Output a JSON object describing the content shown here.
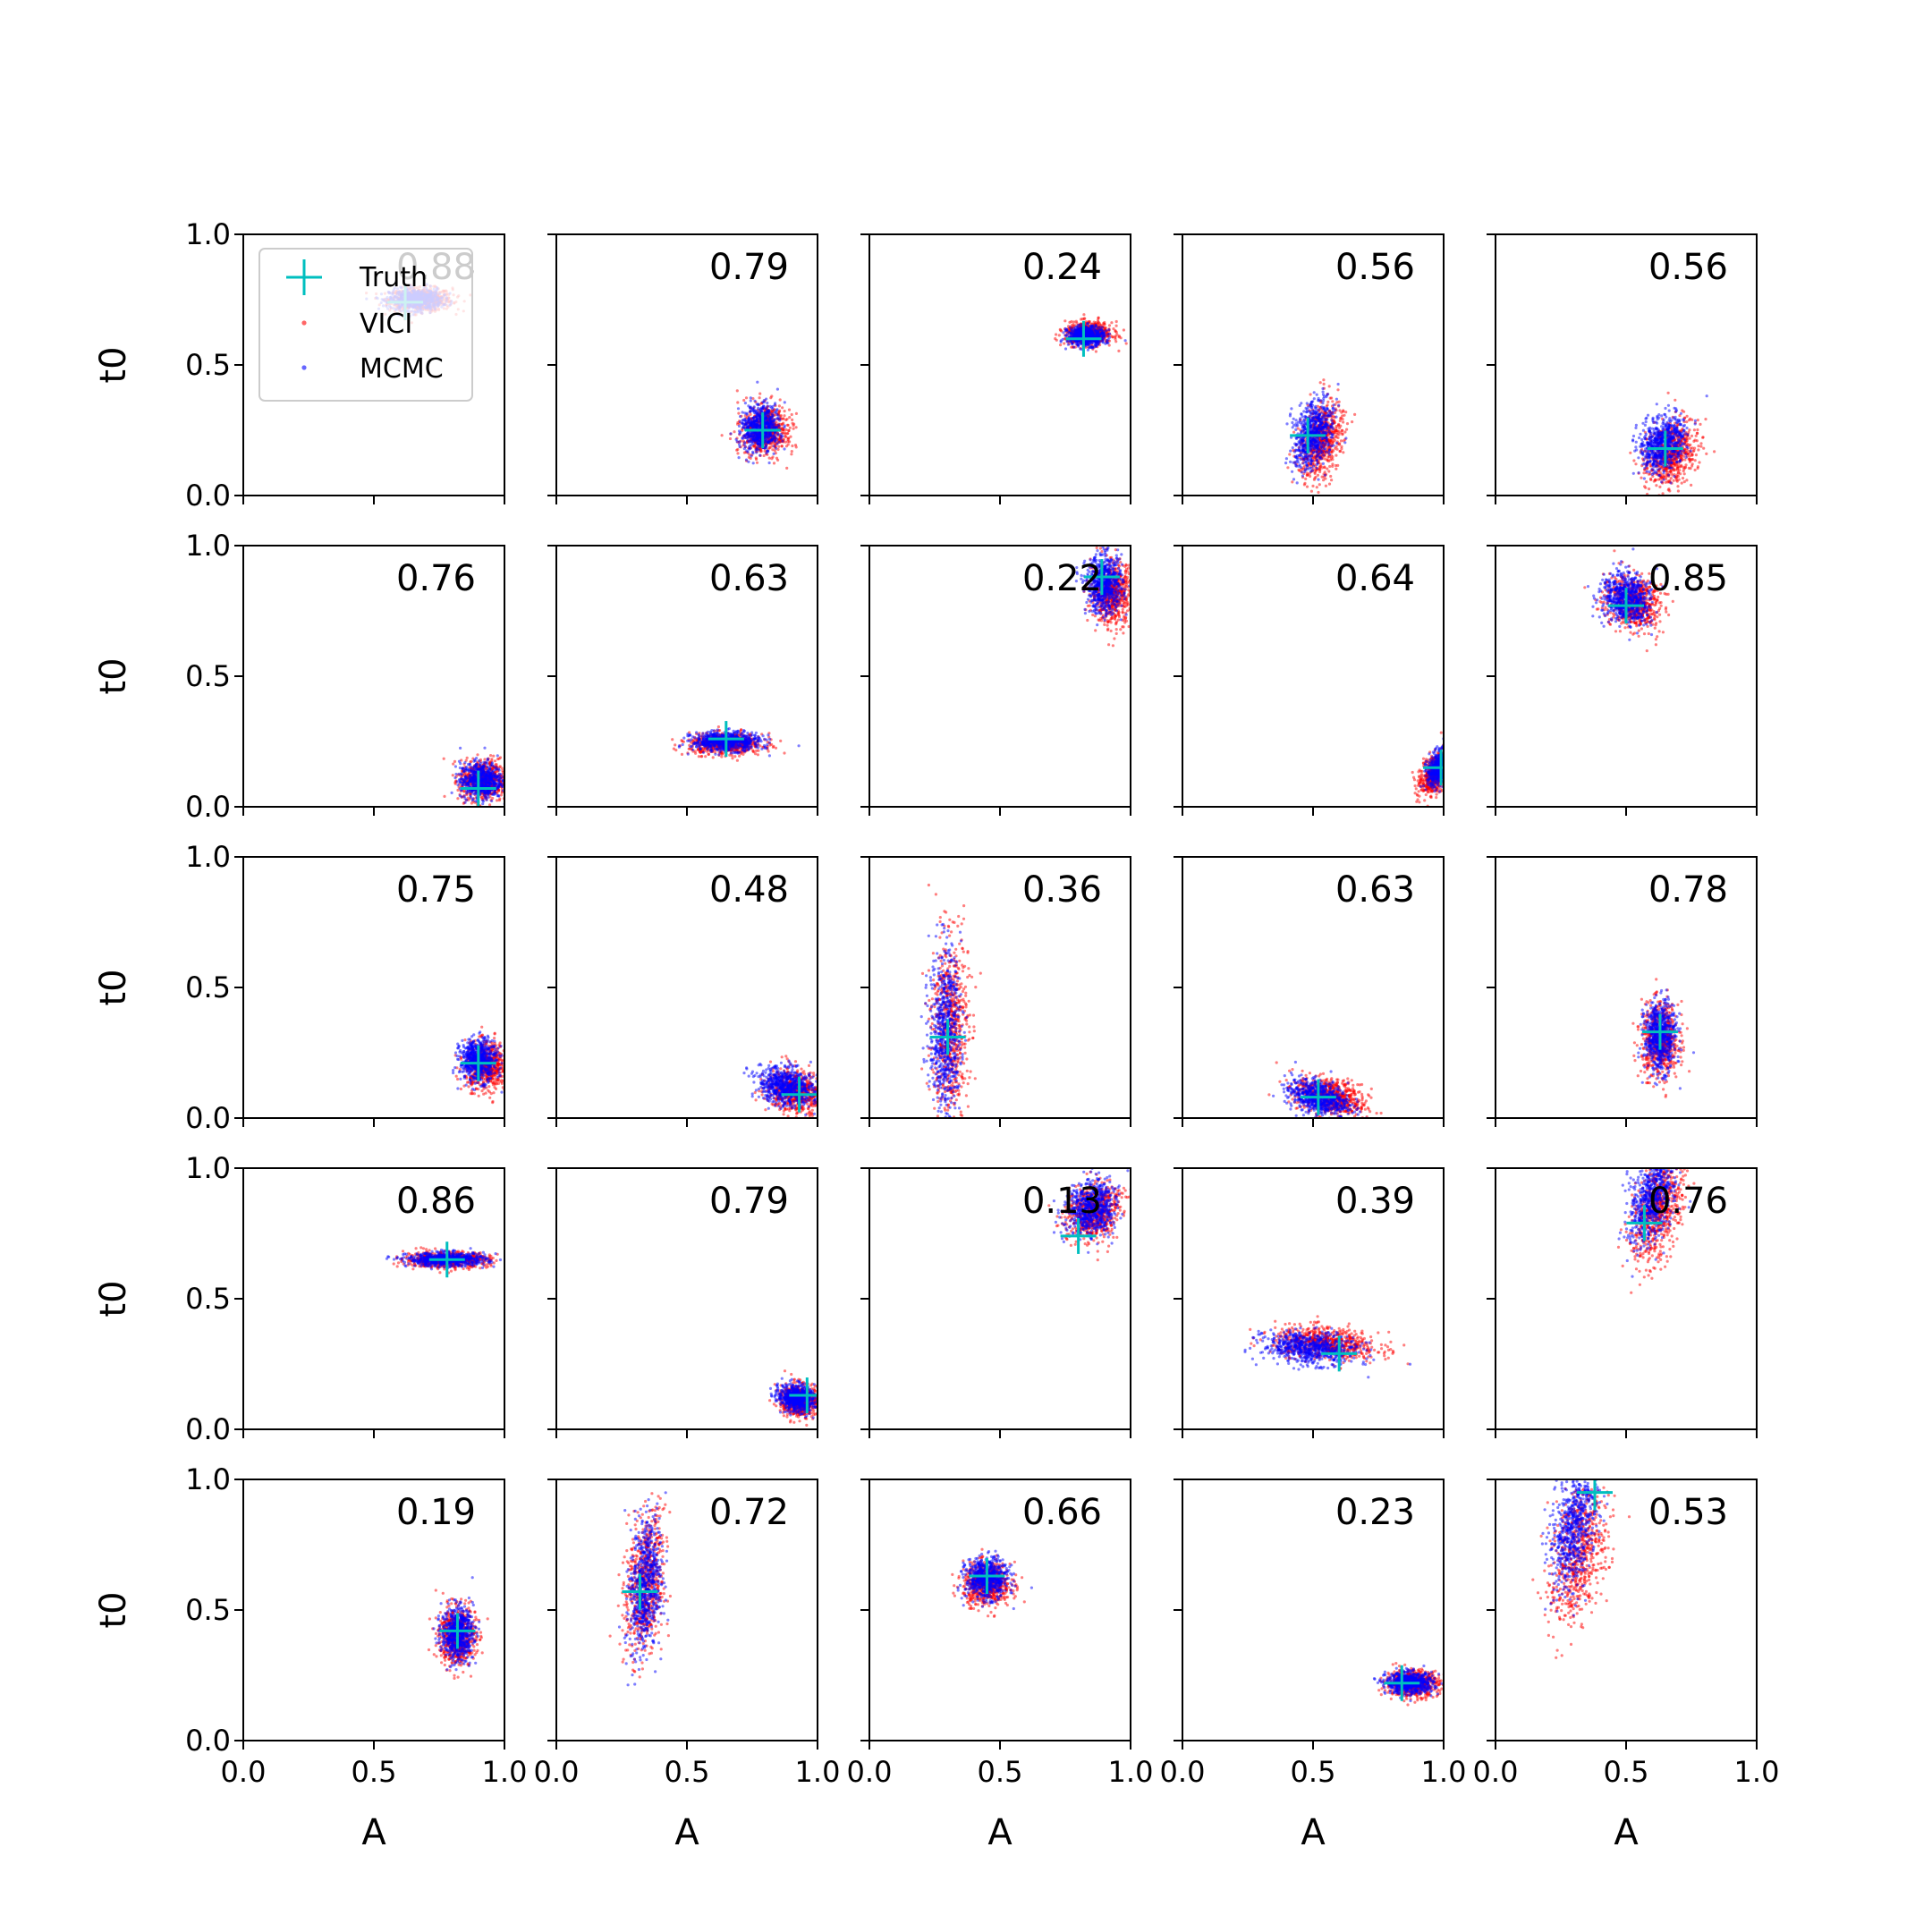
{
  "figure": {
    "xlabel": "A",
    "ylabel": "t0",
    "xticks": [
      "0.0",
      "0.5",
      "1.0"
    ],
    "yticks": [
      "0.0",
      "0.5",
      "1.0"
    ],
    "colors": {
      "vici": "#ff0000",
      "mcmc": "#0000ff",
      "truth": "#00bfbf",
      "axis": "#000000"
    },
    "legend": {
      "placement": "upper-left (first panel)",
      "items": [
        {
          "label": "Truth",
          "marker": "plus",
          "color": "#00bfbf"
        },
        {
          "label": "VICI",
          "marker": "dot",
          "color": "#ff0000"
        },
        {
          "label": "MCMC",
          "marker": "dot",
          "color": "#0000ff"
        }
      ]
    }
  },
  "chart_data": [
    {
      "type": "scatter",
      "row": 0,
      "col": 0,
      "score": "0.88",
      "truth": {
        "A": 0.62,
        "t0": 0.74
      },
      "vici": {
        "cx": 0.68,
        "cy": 0.75,
        "sx": 0.06,
        "sy": 0.022,
        "rot": 0
      },
      "mcmc": {
        "cx": 0.66,
        "cy": 0.75,
        "sx": 0.05,
        "sy": 0.02,
        "rot": 0
      },
      "xlim": [
        0,
        1
      ],
      "ylim": [
        0,
        1
      ]
    },
    {
      "type": "scatter",
      "row": 0,
      "col": 1,
      "score": "0.79",
      "truth": {
        "A": 0.79,
        "t0": 0.25
      },
      "vici": {
        "cx": 0.8,
        "cy": 0.25,
        "sx": 0.045,
        "sy": 0.05,
        "rot": -20
      },
      "mcmc": {
        "cx": 0.78,
        "cy": 0.26,
        "sx": 0.035,
        "sy": 0.045,
        "rot": -20
      },
      "xlim": [
        0,
        1
      ],
      "ylim": [
        0,
        1
      ]
    },
    {
      "type": "scatter",
      "row": 0,
      "col": 2,
      "score": "0.24",
      "truth": {
        "A": 0.82,
        "t0": 0.6
      },
      "vici": {
        "cx": 0.84,
        "cy": 0.62,
        "sx": 0.045,
        "sy": 0.022,
        "rot": 0
      },
      "mcmc": {
        "cx": 0.83,
        "cy": 0.61,
        "sx": 0.035,
        "sy": 0.018,
        "rot": 0
      },
      "xlim": [
        0,
        1
      ],
      "ylim": [
        0,
        1
      ]
    },
    {
      "type": "scatter",
      "row": 0,
      "col": 3,
      "score": "0.56",
      "truth": {
        "A": 0.48,
        "t0": 0.23
      },
      "vici": {
        "cx": 0.53,
        "cy": 0.21,
        "sx": 0.04,
        "sy": 0.075,
        "rot": -15
      },
      "mcmc": {
        "cx": 0.5,
        "cy": 0.23,
        "sx": 0.035,
        "sy": 0.065,
        "rot": -15
      },
      "xlim": [
        0,
        1
      ],
      "ylim": [
        0,
        1
      ]
    },
    {
      "type": "scatter",
      "row": 0,
      "col": 4,
      "score": "0.56",
      "truth": {
        "A": 0.65,
        "t0": 0.18
      },
      "vici": {
        "cx": 0.67,
        "cy": 0.16,
        "sx": 0.045,
        "sy": 0.065,
        "rot": -25
      },
      "mcmc": {
        "cx": 0.64,
        "cy": 0.2,
        "sx": 0.04,
        "sy": 0.055,
        "rot": -25
      },
      "xlim": [
        0,
        1
      ],
      "ylim": [
        0,
        1
      ]
    },
    {
      "type": "scatter",
      "row": 1,
      "col": 0,
      "score": "0.76",
      "truth": {
        "A": 0.9,
        "t0": 0.07
      },
      "vici": {
        "cx": 0.92,
        "cy": 0.1,
        "sx": 0.045,
        "sy": 0.04,
        "rot": 0
      },
      "mcmc": {
        "cx": 0.91,
        "cy": 0.1,
        "sx": 0.04,
        "sy": 0.035,
        "rot": 0
      },
      "xlim": [
        0,
        1
      ],
      "ylim": [
        0,
        1
      ]
    },
    {
      "type": "scatter",
      "row": 1,
      "col": 1,
      "score": "0.63",
      "truth": {
        "A": 0.65,
        "t0": 0.26
      },
      "vici": {
        "cx": 0.65,
        "cy": 0.24,
        "sx": 0.07,
        "sy": 0.02,
        "rot": 0
      },
      "mcmc": {
        "cx": 0.65,
        "cy": 0.25,
        "sx": 0.065,
        "sy": 0.018,
        "rot": 0
      },
      "xlim": [
        0,
        1
      ],
      "ylim": [
        0,
        1
      ]
    },
    {
      "type": "scatter",
      "row": 1,
      "col": 2,
      "score": "0.22",
      "truth": {
        "A": 0.89,
        "t0": 0.88
      },
      "vici": {
        "cx": 0.93,
        "cy": 0.82,
        "sx": 0.04,
        "sy": 0.06,
        "rot": 0
      },
      "mcmc": {
        "cx": 0.9,
        "cy": 0.85,
        "sx": 0.035,
        "sy": 0.055,
        "rot": 0
      },
      "xlim": [
        0,
        1
      ],
      "ylim": [
        0,
        1
      ]
    },
    {
      "type": "scatter",
      "row": 1,
      "col": 3,
      "score": "0.64",
      "truth": {
        "A": 0.99,
        "t0": 0.15
      },
      "vici": {
        "cx": 0.97,
        "cy": 0.13,
        "sx": 0.025,
        "sy": 0.045,
        "rot": -30
      },
      "mcmc": {
        "cx": 0.99,
        "cy": 0.16,
        "sx": 0.02,
        "sy": 0.04,
        "rot": -30
      },
      "xlim": [
        0,
        1
      ],
      "ylim": [
        0,
        1
      ]
    },
    {
      "type": "scatter",
      "row": 1,
      "col": 4,
      "score": "0.85",
      "truth": {
        "A": 0.5,
        "t0": 0.77
      },
      "vici": {
        "cx": 0.53,
        "cy": 0.78,
        "sx": 0.055,
        "sy": 0.05,
        "rot": -40
      },
      "mcmc": {
        "cx": 0.5,
        "cy": 0.8,
        "sx": 0.05,
        "sy": 0.045,
        "rot": -40
      },
      "xlim": [
        0,
        1
      ],
      "ylim": [
        0,
        1
      ]
    },
    {
      "type": "scatter",
      "row": 2,
      "col": 0,
      "score": "0.75",
      "truth": {
        "A": 0.9,
        "t0": 0.21
      },
      "vici": {
        "cx": 0.93,
        "cy": 0.2,
        "sx": 0.04,
        "sy": 0.045,
        "rot": 0
      },
      "mcmc": {
        "cx": 0.9,
        "cy": 0.22,
        "sx": 0.035,
        "sy": 0.04,
        "rot": 0
      },
      "xlim": [
        0,
        1
      ],
      "ylim": [
        0,
        1
      ]
    },
    {
      "type": "scatter",
      "row": 2,
      "col": 1,
      "score": "0.48",
      "truth": {
        "A": 0.93,
        "t0": 0.09
      },
      "vici": {
        "cx": 0.92,
        "cy": 0.1,
        "sx": 0.06,
        "sy": 0.04,
        "rot": -15
      },
      "mcmc": {
        "cx": 0.88,
        "cy": 0.12,
        "sx": 0.055,
        "sy": 0.035,
        "rot": -15
      },
      "xlim": [
        0,
        1
      ],
      "ylim": [
        0,
        1
      ]
    },
    {
      "type": "scatter",
      "row": 2,
      "col": 2,
      "score": "0.36",
      "truth": {
        "A": 0.3,
        "t0": 0.31
      },
      "vici": {
        "cx": 0.31,
        "cy": 0.35,
        "sx": 0.035,
        "sy": 0.17,
        "rot": 0
      },
      "mcmc": {
        "cx": 0.29,
        "cy": 0.33,
        "sx": 0.03,
        "sy": 0.16,
        "rot": 0
      },
      "xlim": [
        0,
        1
      ],
      "ylim": [
        0,
        1
      ]
    },
    {
      "type": "scatter",
      "row": 2,
      "col": 3,
      "score": "0.63",
      "truth": {
        "A": 0.52,
        "t0": 0.08
      },
      "vici": {
        "cx": 0.57,
        "cy": 0.08,
        "sx": 0.07,
        "sy": 0.035,
        "rot": -15
      },
      "mcmc": {
        "cx": 0.52,
        "cy": 0.08,
        "sx": 0.06,
        "sy": 0.03,
        "rot": -15
      },
      "xlim": [
        0,
        1
      ],
      "ylim": [
        0,
        1
      ]
    },
    {
      "type": "scatter",
      "row": 2,
      "col": 4,
      "score": "0.78",
      "truth": {
        "A": 0.63,
        "t0": 0.33
      },
      "vici": {
        "cx": 0.63,
        "cy": 0.3,
        "sx": 0.035,
        "sy": 0.07,
        "rot": 0
      },
      "mcmc": {
        "cx": 0.63,
        "cy": 0.31,
        "sx": 0.03,
        "sy": 0.065,
        "rot": 0
      },
      "xlim": [
        0,
        1
      ],
      "ylim": [
        0,
        1
      ]
    },
    {
      "type": "scatter",
      "row": 3,
      "col": 0,
      "score": "0.86",
      "truth": {
        "A": 0.78,
        "t0": 0.65
      },
      "vici": {
        "cx": 0.78,
        "cy": 0.65,
        "sx": 0.08,
        "sy": 0.015,
        "rot": 0
      },
      "mcmc": {
        "cx": 0.78,
        "cy": 0.65,
        "sx": 0.075,
        "sy": 0.013,
        "rot": 0
      },
      "xlim": [
        0,
        1
      ],
      "ylim": [
        0,
        1
      ]
    },
    {
      "type": "scatter",
      "row": 3,
      "col": 1,
      "score": "0.79",
      "truth": {
        "A": 0.96,
        "t0": 0.13
      },
      "vici": {
        "cx": 0.93,
        "cy": 0.11,
        "sx": 0.035,
        "sy": 0.03,
        "rot": -15
      },
      "mcmc": {
        "cx": 0.92,
        "cy": 0.12,
        "sx": 0.035,
        "sy": 0.025,
        "rot": -15
      },
      "xlim": [
        0,
        1
      ],
      "ylim": [
        0,
        1
      ]
    },
    {
      "type": "scatter",
      "row": 3,
      "col": 2,
      "score": "0.13",
      "truth": {
        "A": 0.8,
        "t0": 0.74
      },
      "vici": {
        "cx": 0.86,
        "cy": 0.83,
        "sx": 0.045,
        "sy": 0.06,
        "rot": -40
      },
      "mcmc": {
        "cx": 0.85,
        "cy": 0.85,
        "sx": 0.045,
        "sy": 0.055,
        "rot": -40
      },
      "xlim": [
        0,
        1
      ],
      "ylim": [
        0,
        1
      ]
    },
    {
      "type": "scatter",
      "row": 3,
      "col": 3,
      "score": "0.39",
      "truth": {
        "A": 0.6,
        "t0": 0.29
      },
      "vici": {
        "cx": 0.55,
        "cy": 0.33,
        "sx": 0.1,
        "sy": 0.03,
        "rot": -5
      },
      "mcmc": {
        "cx": 0.49,
        "cy": 0.31,
        "sx": 0.09,
        "sy": 0.03,
        "rot": -5
      },
      "xlim": [
        0,
        1
      ],
      "ylim": [
        0,
        1
      ]
    },
    {
      "type": "scatter",
      "row": 3,
      "col": 4,
      "score": "0.76",
      "truth": {
        "A": 0.57,
        "t0": 0.79
      },
      "vici": {
        "cx": 0.62,
        "cy": 0.84,
        "sx": 0.045,
        "sy": 0.1,
        "rot": -15
      },
      "mcmc": {
        "cx": 0.6,
        "cy": 0.88,
        "sx": 0.04,
        "sy": 0.09,
        "rot": -15
      },
      "xlim": [
        0,
        1
      ],
      "ylim": [
        0,
        1
      ]
    },
    {
      "type": "scatter",
      "row": 4,
      "col": 0,
      "score": "0.19",
      "truth": {
        "A": 0.82,
        "t0": 0.42
      },
      "vici": {
        "cx": 0.82,
        "cy": 0.4,
        "sx": 0.035,
        "sy": 0.055,
        "rot": 0
      },
      "mcmc": {
        "cx": 0.82,
        "cy": 0.41,
        "sx": 0.03,
        "sy": 0.05,
        "rot": 0
      },
      "xlim": [
        0,
        1
      ],
      "ylim": [
        0,
        1
      ]
    },
    {
      "type": "scatter",
      "row": 4,
      "col": 1,
      "score": "0.72",
      "truth": {
        "A": 0.32,
        "t0": 0.57
      },
      "vici": {
        "cx": 0.34,
        "cy": 0.6,
        "sx": 0.035,
        "sy": 0.14,
        "rot": -5
      },
      "mcmc": {
        "cx": 0.34,
        "cy": 0.6,
        "sx": 0.03,
        "sy": 0.13,
        "rot": -5
      },
      "xlim": [
        0,
        1
      ],
      "ylim": [
        0,
        1
      ]
    },
    {
      "type": "scatter",
      "row": 4,
      "col": 2,
      "score": "0.66",
      "truth": {
        "A": 0.45,
        "t0": 0.63
      },
      "vici": {
        "cx": 0.45,
        "cy": 0.6,
        "sx": 0.045,
        "sy": 0.04,
        "rot": 0
      },
      "mcmc": {
        "cx": 0.45,
        "cy": 0.62,
        "sx": 0.04,
        "sy": 0.038,
        "rot": 0
      },
      "xlim": [
        0,
        1
      ],
      "ylim": [
        0,
        1
      ]
    },
    {
      "type": "scatter",
      "row": 4,
      "col": 3,
      "score": "0.23",
      "truth": {
        "A": 0.84,
        "t0": 0.22
      },
      "vici": {
        "cx": 0.88,
        "cy": 0.22,
        "sx": 0.05,
        "sy": 0.025,
        "rot": 0
      },
      "mcmc": {
        "cx": 0.87,
        "cy": 0.22,
        "sx": 0.045,
        "sy": 0.02,
        "rot": 0
      },
      "xlim": [
        0,
        1
      ],
      "ylim": [
        0,
        1
      ]
    },
    {
      "type": "scatter",
      "row": 4,
      "col": 4,
      "score": "0.53",
      "truth": {
        "A": 0.38,
        "t0": 0.95
      },
      "vici": {
        "cx": 0.32,
        "cy": 0.72,
        "sx": 0.05,
        "sy": 0.14,
        "rot": -10
      },
      "mcmc": {
        "cx": 0.3,
        "cy": 0.82,
        "sx": 0.04,
        "sy": 0.12,
        "rot": -10
      },
      "xlim": [
        0,
        1
      ],
      "ylim": [
        0,
        1
      ]
    }
  ]
}
